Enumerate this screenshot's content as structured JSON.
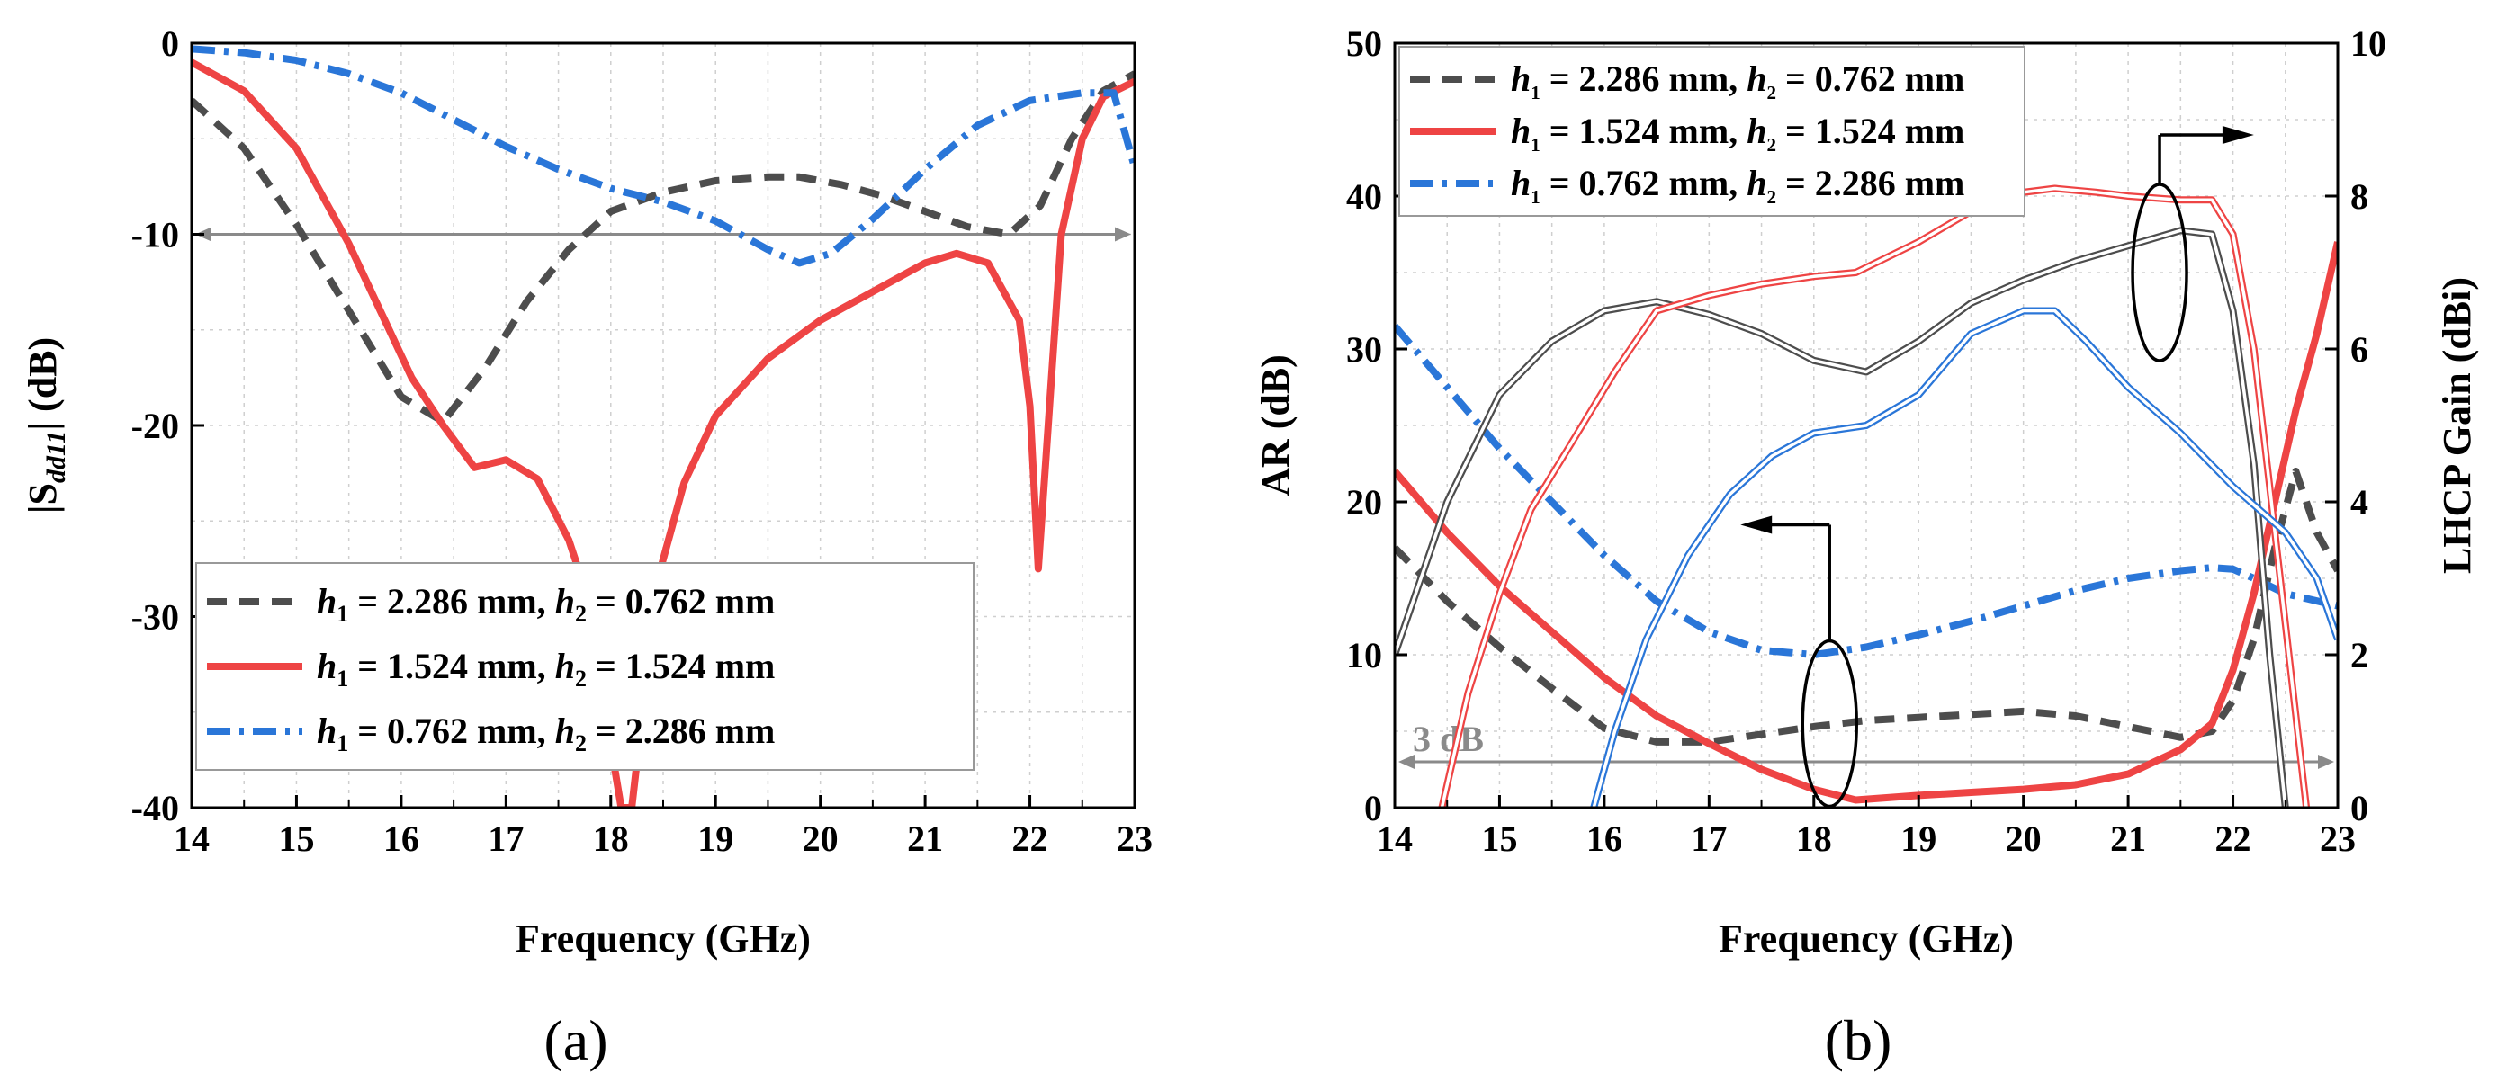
{
  "colors": {
    "dark": "#4d4d4d",
    "red": "#ee4444",
    "blue": "#2a76d8",
    "ref": "#8a8a8a"
  },
  "chart_data": [
    {
      "type": "line",
      "panel_label": "(a)",
      "xlabel": "Frequency (GHz)",
      "ylabel_prefix": "|S",
      "ylabel_sub": "dd11",
      "ylabel_suffix": "| (dB)",
      "xlim": [
        14,
        23
      ],
      "ylim": [
        -40,
        0
      ],
      "xticks": [
        14,
        15,
        16,
        17,
        18,
        19,
        20,
        21,
        22,
        23
      ],
      "yticks": [
        0,
        -10,
        -20,
        -30,
        -40
      ],
      "grid": true,
      "legend_position": "bottom-right",
      "reference_line": {
        "y": -10
      },
      "series": [
        {
          "name": "h1 = 2.286 mm, h2 = 0.762 mm",
          "legend": {
            "a": "h",
            "as": "1",
            "b": " = 2.286 mm, ",
            "c": "h",
            "cs": "2",
            "d": " = 0.762 mm"
          },
          "style": "dash",
          "color_key": "dark",
          "x": [
            14,
            14.5,
            15,
            15.5,
            16,
            16.4,
            16.8,
            17.2,
            17.6,
            18,
            18.5,
            19,
            19.5,
            19.8,
            20.2,
            20.6,
            21,
            21.4,
            21.8,
            22.1,
            22.4,
            22.7,
            23
          ],
          "y": [
            -3,
            -5.5,
            -9.5,
            -14,
            -18.5,
            -19.8,
            -17,
            -13.5,
            -10.8,
            -8.8,
            -7.8,
            -7.2,
            -7,
            -7,
            -7.4,
            -8,
            -8.8,
            -9.6,
            -10,
            -8.5,
            -5,
            -2.5,
            -1.6
          ]
        },
        {
          "name": "h1 = 1.524 mm, h2 = 1.524 mm",
          "legend": {
            "a": "h",
            "as": "1",
            "b": " = 1.524 mm, ",
            "c": "h",
            "cs": "2",
            "d": " = 1.524 mm"
          },
          "style": "solid",
          "color_key": "red",
          "x": [
            14,
            14.5,
            15,
            15.5,
            15.8,
            16.1,
            16.4,
            16.7,
            17,
            17.3,
            17.6,
            17.75,
            18.1,
            18.2,
            18.45,
            18.7,
            19,
            19.5,
            20,
            20.5,
            21,
            21.3,
            21.6,
            21.9,
            22.0,
            22.08,
            22.15,
            22.3,
            22.5,
            22.7,
            23
          ],
          "y": [
            -1,
            -2.5,
            -5.5,
            -10.5,
            -14,
            -17.5,
            -20,
            -22.2,
            -21.8,
            -22.8,
            -26,
            -28.5,
            -40,
            -40,
            -28,
            -23,
            -19.5,
            -16.5,
            -14.5,
            -13,
            -11.5,
            -11,
            -11.5,
            -14.5,
            -19,
            -27.5,
            -22,
            -10,
            -5,
            -2.8,
            -2
          ]
        },
        {
          "name": "h1 = 0.762 mm, h2 = 2.286 mm",
          "legend": {
            "a": "h",
            "as": "1",
            "b": " = 0.762 mm, ",
            "c": "h",
            "cs": "2",
            "d": " = 2.286 mm"
          },
          "style": "dashdot",
          "color_key": "blue",
          "x": [
            14,
            14.5,
            15,
            15.5,
            16,
            16.5,
            17,
            17.5,
            18,
            18.5,
            19,
            19.5,
            19.8,
            20.1,
            20.5,
            21,
            21.5,
            22,
            22.5,
            22.8,
            23
          ],
          "y": [
            -0.3,
            -0.5,
            -0.9,
            -1.6,
            -2.6,
            -4,
            -5.4,
            -6.6,
            -7.6,
            -8.3,
            -9.3,
            -10.8,
            -11.5,
            -11,
            -9.2,
            -6.6,
            -4.3,
            -3,
            -2.6,
            -2.6,
            -6.5
          ]
        }
      ]
    },
    {
      "type": "line",
      "panel_label": "(b)",
      "xlabel": "Frequency (GHz)",
      "ylabel": "AR (dB)",
      "ylabel_right": "LHCP Gain (dBi)",
      "xlim": [
        14,
        23
      ],
      "ylim": [
        0,
        50
      ],
      "ylim_right": [
        0,
        10
      ],
      "xticks": [
        14,
        15,
        16,
        17,
        18,
        19,
        20,
        21,
        22,
        23
      ],
      "yticks": [
        0,
        10,
        20,
        30,
        40,
        50
      ],
      "yticks_right": [
        0,
        2,
        4,
        6,
        8,
        10
      ],
      "grid": true,
      "legend_position": "top-left",
      "reference_line": {
        "y": 3,
        "label": "3 dB"
      },
      "series": [
        {
          "name": "h1 = 2.286 mm, h2 = 0.762 mm",
          "legend": {
            "a": "h",
            "as": "1",
            "b": " = 2.286 mm, ",
            "c": "h",
            "cs": "2",
            "d": " = 0.762 mm"
          },
          "quantity": "AR",
          "style": "dash",
          "color_key": "dark",
          "x": [
            14,
            14.5,
            15,
            15.5,
            16,
            16.5,
            17,
            17.5,
            18,
            18.5,
            19,
            19.5,
            20,
            20.5,
            21,
            21.5,
            21.8,
            22,
            22.2,
            22.4,
            22.6,
            22.8,
            23
          ],
          "y": [
            17,
            13.5,
            10.5,
            7.8,
            5.2,
            4.3,
            4.3,
            4.8,
            5.3,
            5.7,
            5.9,
            6.1,
            6.3,
            6,
            5.3,
            4.6,
            5,
            7,
            11,
            17,
            22,
            18,
            15.5
          ]
        },
        {
          "name": "h1 = 1.524 mm, h2 = 1.524 mm",
          "legend": {
            "a": "h",
            "as": "1",
            "b": " = 1.524 mm, ",
            "c": "h",
            "cs": "2",
            "d": " = 1.524 mm"
          },
          "quantity": "AR",
          "style": "solid",
          "color_key": "red",
          "x": [
            14,
            14.5,
            15,
            15.5,
            16,
            16.5,
            17,
            17.5,
            18,
            18.4,
            19,
            19.5,
            20,
            20.5,
            21,
            21.5,
            21.8,
            22,
            22.2,
            22.4,
            22.6,
            22.8,
            23
          ],
          "y": [
            22,
            18,
            14.5,
            11.5,
            8.5,
            6,
            4.2,
            2.5,
            1.2,
            0.5,
            0.8,
            1.0,
            1.2,
            1.5,
            2.2,
            3.8,
            5.5,
            9,
            14,
            20,
            26,
            31,
            37
          ]
        },
        {
          "name": "h1 = 0.762 mm, h2 = 2.286 mm",
          "legend": {
            "a": "h",
            "as": "1",
            "b": " = 0.762 mm, ",
            "c": "h",
            "cs": "2",
            "d": " = 2.286 mm"
          },
          "quantity": "AR",
          "style": "dashdot",
          "color_key": "blue",
          "x": [
            14,
            14.5,
            15,
            15.5,
            16,
            16.5,
            17,
            17.5,
            18,
            18.5,
            19,
            19.5,
            20,
            20.5,
            21,
            21.5,
            21.8,
            22,
            22.2,
            22.5,
            23
          ],
          "y": [
            31.5,
            27.5,
            23.5,
            20,
            16.5,
            13.5,
            11.5,
            10.3,
            10,
            10.5,
            11.3,
            12.2,
            13.2,
            14.2,
            15,
            15.5,
            15.7,
            15.6,
            15,
            14,
            13.2
          ]
        },
        {
          "name": "h1 = 2.286 mm, h2 = 0.762 mm (LHCP Gain)",
          "quantity": "gain",
          "style": "double",
          "color_key": "dark",
          "x": [
            14,
            14.5,
            15,
            15.5,
            16,
            16.5,
            17,
            17.5,
            18,
            18.5,
            19,
            19.5,
            20,
            20.5,
            21,
            21.5,
            21.8,
            22,
            22.2,
            22.35,
            22.5
          ],
          "y": [
            2.0,
            4.0,
            5.4,
            6.1,
            6.5,
            6.62,
            6.45,
            6.2,
            5.85,
            5.7,
            6.1,
            6.6,
            6.9,
            7.15,
            7.35,
            7.55,
            7.5,
            6.5,
            4.5,
            2.0,
            0
          ]
        },
        {
          "name": "h1 = 1.524 mm, h2 = 1.524 mm (LHCP Gain)",
          "quantity": "gain",
          "style": "double",
          "color_key": "red",
          "x": [
            14.45,
            14.7,
            15,
            15.3,
            15.7,
            16.1,
            16.5,
            17,
            17.5,
            18,
            18.4,
            19,
            19.5,
            20,
            20.3,
            20.7,
            21,
            21.5,
            21.8,
            22,
            22.2,
            22.45,
            22.7
          ],
          "y": [
            0,
            1.5,
            2.8,
            3.9,
            4.8,
            5.7,
            6.5,
            6.7,
            6.85,
            6.95,
            7.0,
            7.4,
            7.8,
            8.05,
            8.1,
            8.05,
            8.0,
            7.95,
            7.95,
            7.5,
            6.0,
            3.0,
            0
          ]
        },
        {
          "name": "h1 = 0.762 mm, h2 = 2.286 mm (LHCP Gain)",
          "quantity": "gain",
          "style": "double",
          "color_key": "blue",
          "x": [
            15.9,
            16.1,
            16.4,
            16.8,
            17.2,
            17.6,
            18,
            18.5,
            19,
            19.5,
            20,
            20.3,
            20.6,
            21,
            21.5,
            22,
            22.5,
            22.8,
            23
          ],
          "y": [
            0,
            1.0,
            2.2,
            3.3,
            4.1,
            4.6,
            4.9,
            5.0,
            5.4,
            6.2,
            6.5,
            6.5,
            6.1,
            5.5,
            4.9,
            4.2,
            3.6,
            3.0,
            2.2
          ]
        }
      ]
    }
  ]
}
